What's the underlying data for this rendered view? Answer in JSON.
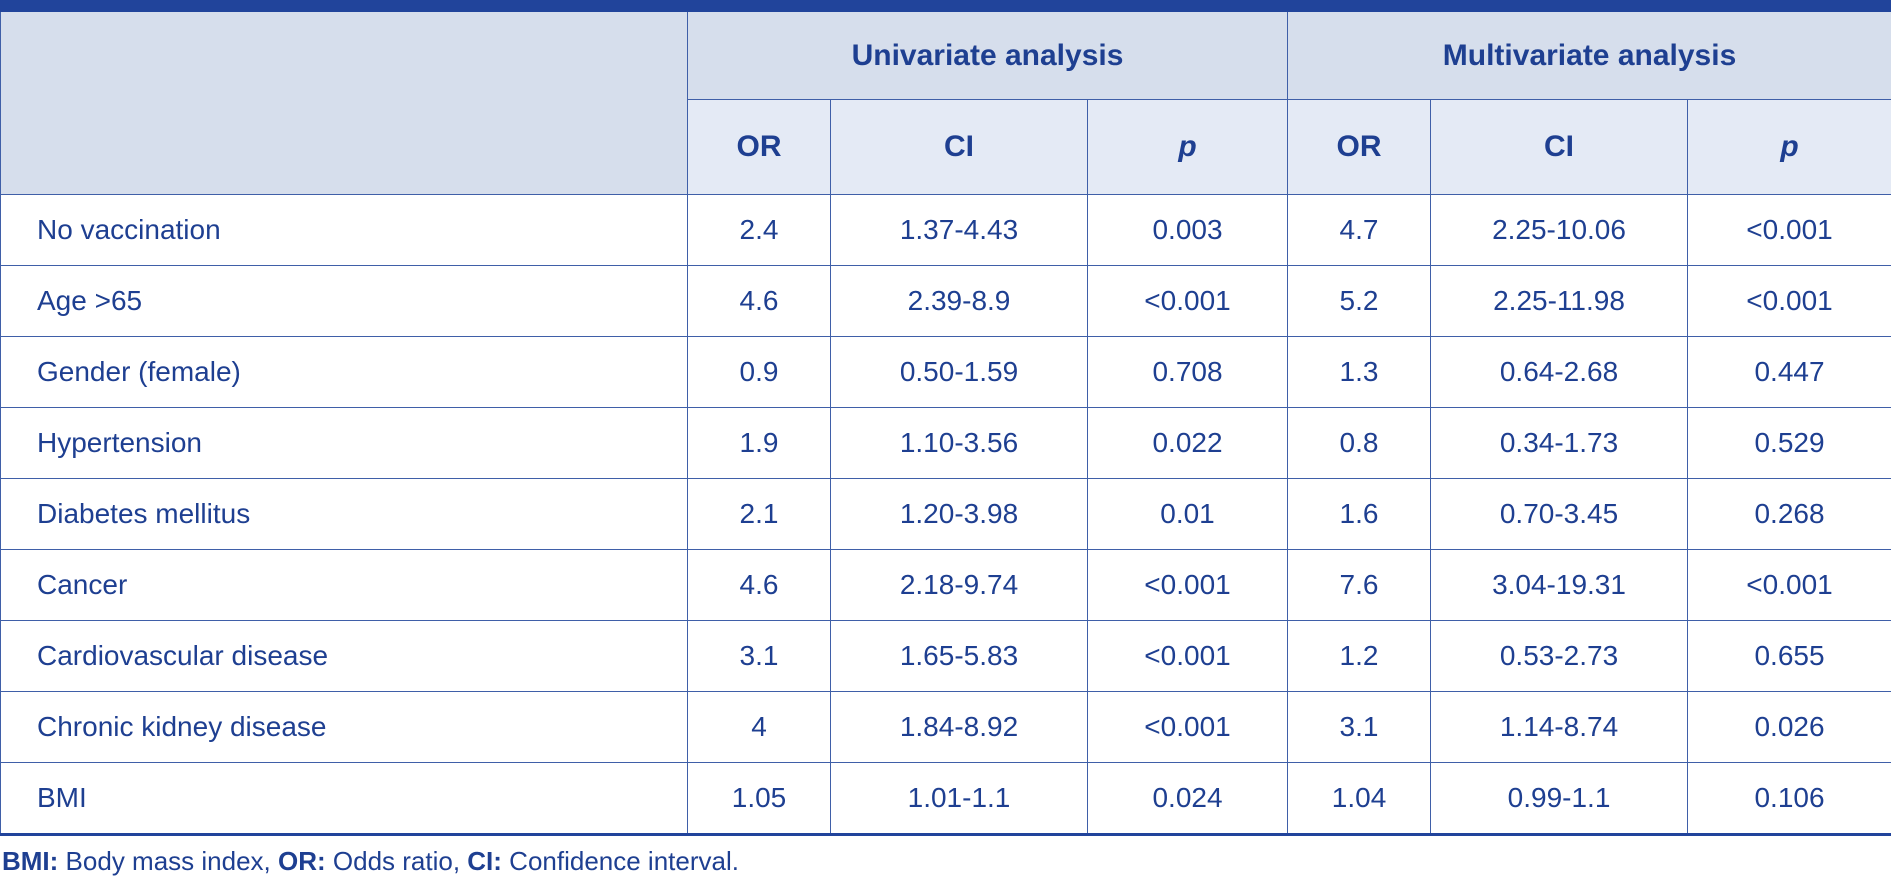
{
  "header": {
    "group_univariate": "Univariate analysis",
    "group_multivariate": "Multivariate analysis",
    "columns": [
      "OR",
      "CI",
      "p",
      "OR",
      "CI",
      "p"
    ]
  },
  "rows": [
    {
      "label": "No vaccination",
      "uni_or": "2.4",
      "uni_ci": "1.37-4.43",
      "uni_p": "0.003",
      "multi_or": "4.7",
      "multi_ci": "2.25-10.06",
      "multi_p": "<0.001"
    },
    {
      "label": "Age >65",
      "uni_or": "4.6",
      "uni_ci": "2.39-8.9",
      "uni_p": "<0.001",
      "multi_or": "5.2",
      "multi_ci": "2.25-11.98",
      "multi_p": "<0.001"
    },
    {
      "label": "Gender (female)",
      "uni_or": "0.9",
      "uni_ci": "0.50-1.59",
      "uni_p": "0.708",
      "multi_or": "1.3",
      "multi_ci": "0.64-2.68",
      "multi_p": "0.447"
    },
    {
      "label": "Hypertension",
      "uni_or": "1.9",
      "uni_ci": "1.10-3.56",
      "uni_p": "0.022",
      "multi_or": "0.8",
      "multi_ci": "0.34-1.73",
      "multi_p": "0.529"
    },
    {
      "label": "Diabetes mellitus",
      "uni_or": "2.1",
      "uni_ci": "1.20-3.98",
      "uni_p": "0.01",
      "multi_or": "1.6",
      "multi_ci": "0.70-3.45",
      "multi_p": "0.268"
    },
    {
      "label": "Cancer",
      "uni_or": "4.6",
      "uni_ci": "2.18-9.74",
      "uni_p": "<0.001",
      "multi_or": "7.6",
      "multi_ci": "3.04-19.31",
      "multi_p": "<0.001"
    },
    {
      "label": "Cardiovascular disease",
      "uni_or": "3.1",
      "uni_ci": "1.65-5.83",
      "uni_p": "<0.001",
      "multi_or": "1.2",
      "multi_ci": "0.53-2.73",
      "multi_p": "0.655"
    },
    {
      "label": "Chronic kidney disease",
      "uni_or": "4",
      "uni_ci": "1.84-8.92",
      "uni_p": "<0.001",
      "multi_or": "3.1",
      "multi_ci": "1.14-8.74",
      "multi_p": "0.026"
    },
    {
      "label": "BMI",
      "uni_or": "1.05",
      "uni_ci": "1.01-1.1",
      "uni_p": "0.024",
      "multi_or": "1.04",
      "multi_ci": "0.99-1.1",
      "multi_p": "0.106"
    }
  ],
  "footnote": {
    "items": [
      {
        "abbr": "BMI:",
        "text": " Body mass index, "
      },
      {
        "abbr": "OR:",
        "text": " Odds ratio, "
      },
      {
        "abbr": "CI:",
        "text": " Confidence interval."
      }
    ]
  },
  "colors": {
    "text": "#1e3f91",
    "top_bar": "#21449b",
    "border": "#3f5fa8",
    "header_group_bg": "#d6deec",
    "header_sub_bg": "#e4eaf5"
  }
}
